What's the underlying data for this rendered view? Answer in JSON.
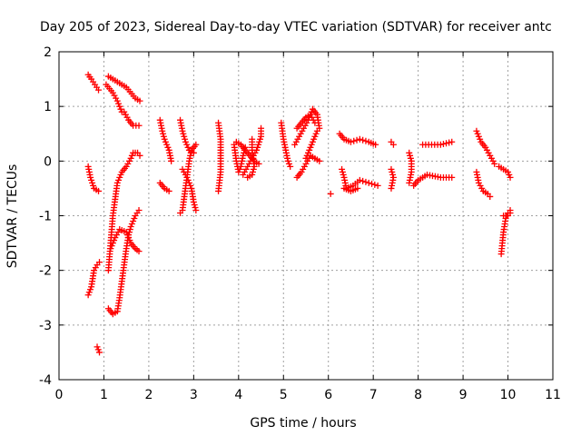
{
  "chart_data": {
    "type": "scatter",
    "title": "Day 205 of 2023, Sidereal Day-to-day VTEC variation (SDTVAR) for receiver antc",
    "xlabel": "GPS time / hours",
    "ylabel": "SDTVAR / TECUs",
    "xlim": [
      0,
      11
    ],
    "ylim": [
      -4,
      2
    ],
    "xticks": [
      0,
      1,
      2,
      3,
      4,
      5,
      6,
      7,
      8,
      9,
      10,
      11
    ],
    "yticks": [
      -4,
      -3,
      -2,
      -1,
      0,
      1,
      2
    ],
    "xtick_labels": [
      "0",
      "1",
      "2",
      "3",
      "4",
      "5",
      "6",
      "7",
      "8",
      "9",
      "10",
      "11"
    ],
    "ytick_labels": [
      "-4",
      "-3",
      "-2",
      "-1",
      "0",
      "1",
      "2"
    ],
    "grid": true,
    "marker": "plus",
    "color": "#ff0000",
    "series": [
      {
        "name": "SDTVAR",
        "tracks": [
          [
            [
              0.65,
              1.58
            ],
            [
              0.72,
              1.5
            ],
            [
              0.8,
              1.4
            ],
            [
              0.88,
              1.3
            ]
          ],
          [
            [
              0.65,
              -0.1
            ],
            [
              0.7,
              -0.3
            ],
            [
              0.78,
              -0.5
            ],
            [
              0.88,
              -0.55
            ]
          ],
          [
            [
              0.65,
              -2.45
            ],
            [
              0.72,
              -2.3
            ],
            [
              0.78,
              -2.0
            ],
            [
              0.85,
              -1.9
            ],
            [
              0.9,
              -1.85
            ]
          ],
          [
            [
              0.85,
              -3.4
            ],
            [
              0.9,
              -3.5
            ]
          ],
          [
            [
              1.05,
              1.4
            ],
            [
              1.2,
              1.25
            ],
            [
              1.3,
              1.1
            ],
            [
              1.4,
              0.9
            ]
          ],
          [
            [
              1.1,
              1.55
            ],
            [
              1.3,
              1.45
            ],
            [
              1.5,
              1.35
            ],
            [
              1.7,
              1.15
            ],
            [
              1.8,
              1.1
            ]
          ],
          [
            [
              1.45,
              0.9
            ],
            [
              1.55,
              0.75
            ],
            [
              1.65,
              0.65
            ],
            [
              1.78,
              0.65
            ]
          ],
          [
            [
              1.1,
              -2.0
            ],
            [
              1.15,
              -1.5
            ],
            [
              1.2,
              -1.0
            ],
            [
              1.25,
              -0.7
            ],
            [
              1.3,
              -0.4
            ],
            [
              1.4,
              -0.2
            ],
            [
              1.5,
              -0.1
            ],
            [
              1.6,
              0.05
            ],
            [
              1.65,
              0.15
            ],
            [
              1.75,
              0.15
            ],
            [
              1.8,
              0.1
            ]
          ],
          [
            [
              1.1,
              -2.7
            ],
            [
              1.2,
              -2.8
            ],
            [
              1.3,
              -2.75
            ],
            [
              1.35,
              -2.5
            ],
            [
              1.4,
              -2.2
            ],
            [
              1.45,
              -1.9
            ],
            [
              1.5,
              -1.6
            ],
            [
              1.55,
              -1.35
            ],
            [
              1.6,
              -1.2
            ],
            [
              1.7,
              -1.0
            ],
            [
              1.78,
              -0.9
            ]
          ],
          [
            [
              1.15,
              -1.6
            ],
            [
              1.25,
              -1.4
            ],
            [
              1.35,
              -1.25
            ],
            [
              1.5,
              -1.3
            ],
            [
              1.6,
              -1.5
            ],
            [
              1.7,
              -1.6
            ],
            [
              1.78,
              -1.65
            ]
          ],
          [
            [
              2.25,
              0.75
            ],
            [
              2.3,
              0.55
            ],
            [
              2.35,
              0.4
            ],
            [
              2.45,
              0.2
            ],
            [
              2.5,
              0.0
            ]
          ],
          [
            [
              2.25,
              -0.4
            ],
            [
              2.35,
              -0.5
            ],
            [
              2.45,
              -0.55
            ]
          ],
          [
            [
              2.7,
              0.75
            ],
            [
              2.75,
              0.55
            ],
            [
              2.82,
              0.35
            ],
            [
              2.9,
              0.2
            ],
            [
              3.0,
              0.15
            ]
          ],
          [
            [
              2.7,
              -0.95
            ],
            [
              2.75,
              -0.9
            ],
            [
              2.8,
              -0.6
            ],
            [
              2.85,
              -0.3
            ],
            [
              2.9,
              0.0
            ],
            [
              2.95,
              0.2
            ],
            [
              3.05,
              0.3
            ]
          ],
          [
            [
              2.75,
              -0.15
            ],
            [
              2.85,
              -0.3
            ],
            [
              2.95,
              -0.5
            ],
            [
              3.0,
              -0.75
            ],
            [
              3.05,
              -0.9
            ]
          ],
          [
            [
              3.55,
              0.7
            ],
            [
              3.6,
              0.4
            ],
            [
              3.6,
              0.1
            ],
            [
              3.6,
              -0.2
            ],
            [
              3.55,
              -0.55
            ]
          ],
          [
            [
              3.9,
              0.3
            ],
            [
              3.95,
              0.0
            ],
            [
              4.0,
              -0.2
            ],
            [
              4.05,
              -0.1
            ],
            [
              4.1,
              0.1
            ],
            [
              4.15,
              0.25
            ]
          ],
          [
            [
              4.1,
              -0.25
            ],
            [
              4.2,
              -0.1
            ],
            [
              4.3,
              0.05
            ],
            [
              4.4,
              0.2
            ],
            [
              4.5,
              0.45
            ],
            [
              4.5,
              0.6
            ]
          ],
          [
            [
              3.95,
              0.35
            ],
            [
              4.05,
              0.3
            ],
            [
              4.15,
              0.2
            ],
            [
              4.25,
              0.1
            ],
            [
              4.35,
              0.0
            ],
            [
              4.45,
              -0.05
            ]
          ],
          [
            [
              4.3,
              0.4
            ],
            [
              4.3,
              0.2
            ],
            [
              4.35,
              -0.1
            ],
            [
              4.3,
              -0.25
            ],
            [
              4.2,
              -0.3
            ]
          ],
          [
            [
              4.95,
              0.7
            ],
            [
              5.0,
              0.4
            ],
            [
              5.05,
              0.2
            ],
            [
              5.1,
              0.0
            ],
            [
              5.15,
              -0.1
            ]
          ],
          [
            [
              5.3,
              -0.3
            ],
            [
              5.4,
              -0.2
            ],
            [
              5.5,
              -0.05
            ],
            [
              5.6,
              0.1
            ],
            [
              5.7,
              0.05
            ],
            [
              5.8,
              0.0
            ]
          ],
          [
            [
              5.25,
              0.3
            ],
            [
              5.35,
              0.45
            ],
            [
              5.45,
              0.6
            ],
            [
              5.55,
              0.75
            ],
            [
              5.65,
              0.95
            ],
            [
              5.75,
              0.85
            ],
            [
              5.8,
              0.6
            ]
          ],
          [
            [
              5.3,
              0.6
            ],
            [
              5.4,
              0.7
            ],
            [
              5.5,
              0.8
            ],
            [
              5.6,
              0.85
            ],
            [
              5.7,
              0.7
            ]
          ],
          [
            [
              5.5,
              0.05
            ],
            [
              5.6,
              0.25
            ],
            [
              5.7,
              0.45
            ],
            [
              5.75,
              0.55
            ]
          ],
          [
            [
              6.05,
              -0.6
            ]
          ],
          [
            [
              6.25,
              0.5
            ],
            [
              6.35,
              0.4
            ],
            [
              6.5,
              0.35
            ],
            [
              6.7,
              0.4
            ],
            [
              6.9,
              0.35
            ],
            [
              7.05,
              0.3
            ]
          ],
          [
            [
              6.3,
              -0.15
            ],
            [
              6.35,
              -0.3
            ],
            [
              6.4,
              -0.5
            ],
            [
              6.55,
              -0.45
            ],
            [
              6.7,
              -0.35
            ],
            [
              6.9,
              -0.4
            ],
            [
              7.1,
              -0.45
            ]
          ],
          [
            [
              6.35,
              -0.5
            ],
            [
              6.5,
              -0.55
            ],
            [
              6.65,
              -0.5
            ]
          ],
          [
            [
              7.4,
              0.35
            ],
            [
              7.45,
              0.3
            ]
          ],
          [
            [
              7.4,
              -0.15
            ],
            [
              7.45,
              -0.3
            ],
            [
              7.4,
              -0.5
            ]
          ],
          [
            [
              7.8,
              0.15
            ],
            [
              7.85,
              0.0
            ],
            [
              7.85,
              -0.2
            ],
            [
              7.8,
              -0.4
            ]
          ],
          [
            [
              7.9,
              -0.45
            ],
            [
              8.0,
              -0.35
            ],
            [
              8.2,
              -0.25
            ],
            [
              8.5,
              -0.3
            ],
            [
              8.75,
              -0.3
            ]
          ],
          [
            [
              8.1,
              0.3
            ],
            [
              8.3,
              0.3
            ],
            [
              8.5,
              0.3
            ],
            [
              8.75,
              0.35
            ]
          ],
          [
            [
              9.3,
              0.55
            ],
            [
              9.4,
              0.35
            ],
            [
              9.5,
              0.25
            ],
            [
              9.6,
              0.1
            ],
            [
              9.7,
              -0.05
            ]
          ],
          [
            [
              9.3,
              -0.2
            ],
            [
              9.35,
              -0.4
            ],
            [
              9.45,
              -0.55
            ],
            [
              9.55,
              -0.6
            ],
            [
              9.6,
              -0.65
            ]
          ],
          [
            [
              9.8,
              -0.1
            ],
            [
              9.9,
              -0.15
            ],
            [
              10.0,
              -0.2
            ],
            [
              10.05,
              -0.3
            ]
          ],
          [
            [
              9.85,
              -1.7
            ],
            [
              9.9,
              -1.3
            ],
            [
              9.95,
              -1.05
            ],
            [
              10.0,
              -0.95
            ],
            [
              10.05,
              -0.9
            ]
          ],
          [
            [
              9.9,
              -1.0
            ],
            [
              10.0,
              -1.0
            ],
            [
              10.05,
              -0.95
            ]
          ]
        ]
      }
    ]
  }
}
